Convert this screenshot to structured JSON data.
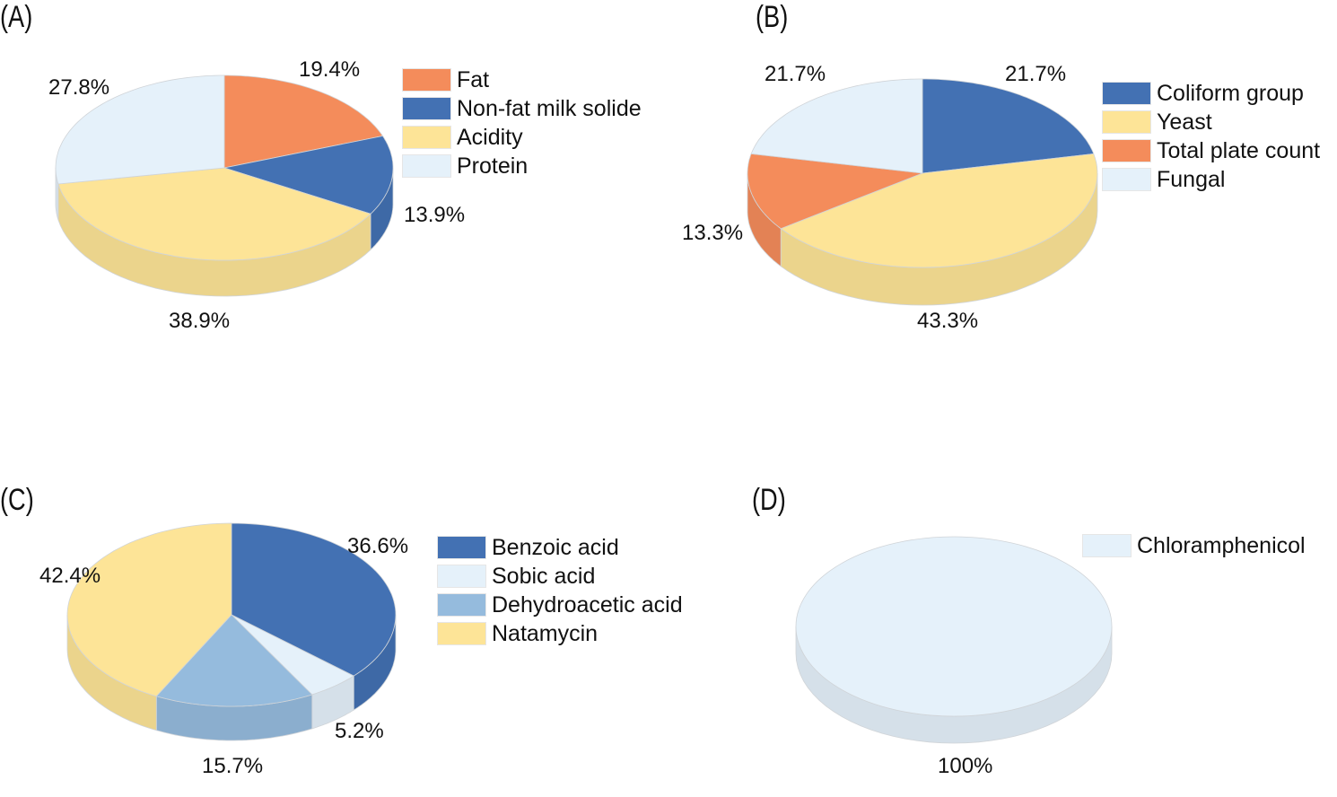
{
  "chart_data": [
    {
      "type": "pie",
      "panel": "(A)",
      "categories": [
        "Fat",
        "Non-fat milk solide",
        "Acidity",
        "Protein"
      ],
      "values": [
        19.4,
        13.9,
        38.9,
        27.8
      ],
      "labels": [
        "19.4%",
        "13.9%",
        "38.9%",
        "27.8%"
      ],
      "colors": [
        "#F48C5B",
        "#4371B3",
        "#FDE497",
        "#E5F1FA"
      ]
    },
    {
      "type": "pie",
      "panel": "(B)",
      "categories": [
        "Coliform group",
        "Yeast",
        "Total plate count",
        "Fungal"
      ],
      "values": [
        21.7,
        43.3,
        13.3,
        21.7
      ],
      "labels": [
        "21.7%",
        "43.3%",
        "13.3%",
        "21.7%"
      ],
      "colors": [
        "#4371B3",
        "#FDE497",
        "#F48C5B",
        "#E5F1FA"
      ]
    },
    {
      "type": "pie",
      "panel": "(C)",
      "categories": [
        "Benzoic acid",
        "Sobic acid",
        "Dehydroacetic acid",
        "Natamycin"
      ],
      "values": [
        36.6,
        5.2,
        15.7,
        42.4
      ],
      "labels": [
        "36.6%",
        "5.2%",
        "15.7%",
        "42.4%"
      ],
      "colors": [
        "#4371B3",
        "#E5F1FA",
        "#95BBDD",
        "#FDE497"
      ]
    },
    {
      "type": "pie",
      "panel": "(D)",
      "categories": [
        "Chloramphenicol"
      ],
      "values": [
        100
      ],
      "labels": [
        "100%"
      ],
      "colors": [
        "#E5F1FA"
      ]
    }
  ]
}
